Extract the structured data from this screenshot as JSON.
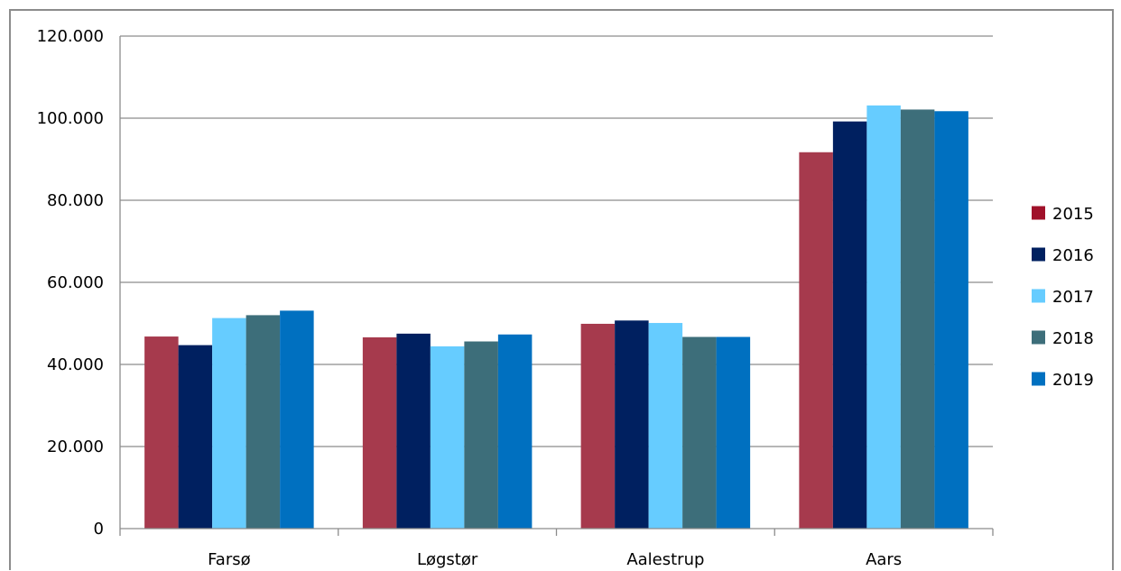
{
  "chart_data": {
    "type": "bar",
    "categories": [
      "Farsø",
      "Løgstør",
      "Aalestrup",
      "Aars"
    ],
    "series": [
      {
        "name": "2015",
        "color": "#a63a4d",
        "legend_color": "#a0112a",
        "values": [
          46800,
          46600,
          49900,
          91700
        ]
      },
      {
        "name": "2016",
        "color": "#002060",
        "legend_color": "#002060",
        "values": [
          44700,
          47500,
          50700,
          99200
        ]
      },
      {
        "name": "2017",
        "color": "#66ccff",
        "legend_color": "#66ccff",
        "values": [
          51300,
          44400,
          50100,
          103100
        ]
      },
      {
        "name": "2018",
        "color": "#3d6e7a",
        "legend_color": "#3d6e7a",
        "values": [
          52000,
          45600,
          46700,
          102100
        ]
      },
      {
        "name": "2019",
        "color": "#0070c0",
        "legend_color": "#0070c0",
        "values": [
          53100,
          47300,
          46700,
          101700
        ]
      }
    ],
    "yticks": [
      "0",
      "20.000",
      "40.000",
      "60.000",
      "80.000",
      "100.000",
      "120.000"
    ],
    "ytick_values": [
      0,
      20000,
      40000,
      60000,
      80000,
      100000,
      120000
    ],
    "ylim": [
      0,
      120000
    ],
    "grid": true,
    "legend_position": "right"
  }
}
